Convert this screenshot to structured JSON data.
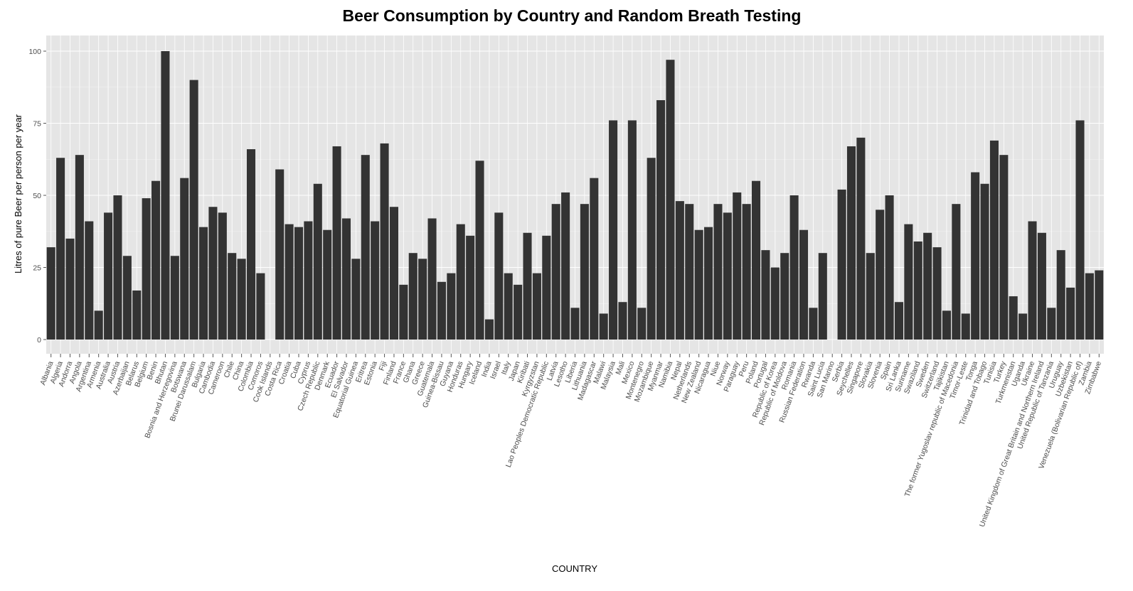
{
  "chart_data": {
    "type": "bar",
    "title": "Beer Consumption by Country and Random Breath Testing",
    "xlabel": "COUNTRY",
    "ylabel": "Litres of pure Beer per person per year",
    "ylim": [
      0,
      105
    ],
    "yticks": [
      0,
      25,
      50,
      75,
      100
    ],
    "grid": true,
    "legend": "none",
    "bar_color": "#333333",
    "panel_color": "#e5e5e5",
    "grid_color": "#ffffff",
    "categories": [
      "Albania",
      "Algeria",
      "Andorra",
      "Angola",
      "Argentina",
      "Armenia",
      "Australia",
      "Austria",
      "Azerbaijan",
      "Belarus",
      "Belgium",
      "Benin",
      "Bhutan",
      "Bosnia and Herzegovina",
      "Botswana",
      "Brunei Darussalam",
      "Bulgaria",
      "Cambodia",
      "Cameroon",
      "Chile",
      "China",
      "Colombia",
      "Comoros",
      "Cook Islands",
      "Costa Rica",
      "Croatia",
      "Cuba",
      "Cyprus",
      "Czech Republic",
      "Denmark",
      "Ecuador",
      "El Salvador",
      "Equatorial Guinea",
      "Eritrea",
      "Estonia",
      "Fiji",
      "Finland",
      "France",
      "Ghana",
      "Greece",
      "Guatemala",
      "Guinea-Bissau",
      "Guyana",
      "Honduras",
      "Hungary",
      "Iceland",
      "India",
      "Israel",
      "Italy",
      "Japan",
      "Kiribati",
      "Kyrgyzstan",
      "Lao Peoples Democratic Republic",
      "Latvia",
      "Lesotho",
      "Liberia",
      "Lithuania",
      "Madagascar",
      "Malawi",
      "Malaysia",
      "Mali",
      "Mexico",
      "Montenegro",
      "Mozambique",
      "Myanmar",
      "Namibia",
      "Nepal",
      "Netherlands",
      "New Zealand",
      "Nicaragua",
      "Niue",
      "Norway",
      "Paraguay",
      "Peru",
      "Poland",
      "Portugal",
      "Republic of Korea",
      "Republic of Moldova",
      "Romania",
      "Russian Federation",
      "Rwanda",
      "Saint Lucia",
      "San Marino",
      "Serbia",
      "Seychelles",
      "Singapore",
      "Slovakia",
      "Slovenia",
      "Spain",
      "Sri Lanka",
      "Suriname",
      "Swaziland",
      "Sweden",
      "Switzerland",
      "Tajikistan",
      "The former Yugoslav republic of Macedonia",
      "Timor-Leste",
      "Tonga",
      "Trinidad and Tobago",
      "Tunisia",
      "Turkey",
      "Turkmenistan",
      "Uganda",
      "Ukraine",
      "United Kingdom of Great Britain and Northern Ireland",
      "United Republic of Tanzania",
      "Uruguay",
      "Uzbekistan",
      "Venezuela (Bolivarian Republic of)",
      "Zambia",
      "Zimbabwe"
    ],
    "values": [
      32,
      63,
      35,
      64,
      41,
      10,
      44,
      50,
      29,
      17,
      49,
      55,
      100,
      29,
      56,
      90,
      39,
      46,
      44,
      30,
      28,
      66,
      23,
      0,
      59,
      40,
      39,
      41,
      54,
      38,
      67,
      42,
      28,
      64,
      41,
      68,
      46,
      19,
      30,
      28,
      42,
      20,
      23,
      40,
      36,
      62,
      7,
      44,
      23,
      19,
      37,
      23,
      36,
      47,
      51,
      11,
      47,
      56,
      9,
      76,
      13,
      76,
      11,
      63,
      83,
      97,
      48,
      47,
      38,
      39,
      47,
      44,
      51,
      47,
      55,
      31,
      25,
      30,
      50,
      38,
      11,
      30,
      0,
      52,
      67,
      70,
      30,
      45,
      50,
      13,
      40,
      34,
      37,
      32,
      10,
      47,
      9,
      58,
      54,
      69,
      64,
      15,
      9,
      41,
      37,
      11,
      31,
      18,
      76,
      23,
      24
    ]
  }
}
